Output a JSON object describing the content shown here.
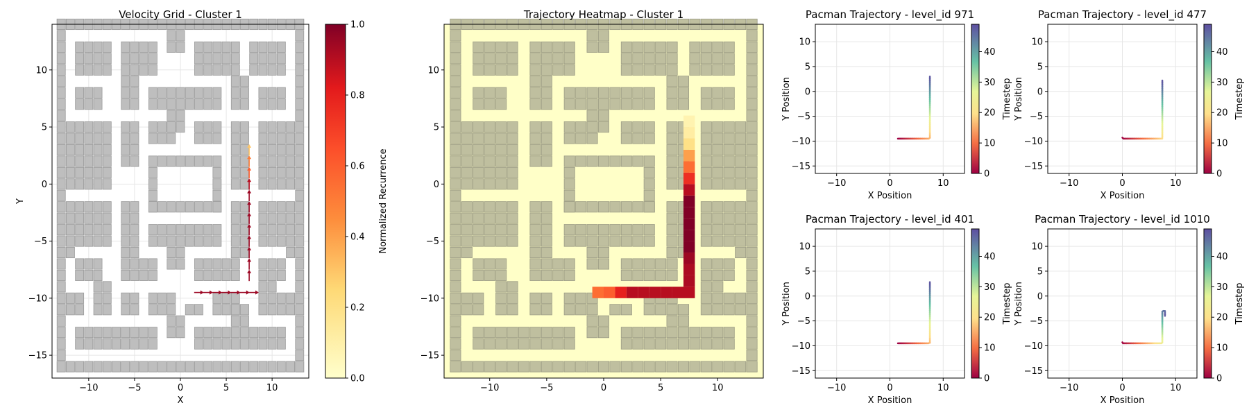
{
  "chart_data": [
    {
      "id": "velocity",
      "type": "quiver",
      "title": "Velocity Grid - Cluster 1",
      "xlabel": "X",
      "ylabel": "Y",
      "xlim": [
        -14,
        14
      ],
      "ylim": [
        -17,
        14
      ],
      "xticks": [
        -10,
        -5,
        0,
        5,
        10
      ],
      "yticks": [
        -15,
        -10,
        -5,
        0,
        5,
        10
      ],
      "grid": true,
      "colorbar": {
        "label": "Normalized Recurrence",
        "min": 0,
        "max": 1,
        "ticks": [
          0.0,
          0.2,
          0.4,
          0.6,
          0.8,
          1.0
        ],
        "colormap": "YlOrRd"
      },
      "arrows": [
        {
          "x": 1.5,
          "y": -9.5,
          "dx": 1,
          "dy": 0,
          "v": 0.95
        },
        {
          "x": 2.5,
          "y": -9.5,
          "dx": 1,
          "dy": 0,
          "v": 0.95
        },
        {
          "x": 3.5,
          "y": -9.5,
          "dx": 1,
          "dy": 0,
          "v": 0.95
        },
        {
          "x": 4.5,
          "y": -9.5,
          "dx": 1,
          "dy": 0,
          "v": 0.95
        },
        {
          "x": 5.5,
          "y": -9.5,
          "dx": 1,
          "dy": 0,
          "v": 0.95
        },
        {
          "x": 6.5,
          "y": -9.5,
          "dx": 1,
          "dy": 0,
          "v": 0.95
        },
        {
          "x": 7.5,
          "y": -9.5,
          "dx": 1,
          "dy": 0,
          "v": 0.95
        },
        {
          "x": 7.5,
          "y": -8.5,
          "dx": 0,
          "dy": 1,
          "v": 0.95
        },
        {
          "x": 7.5,
          "y": -7.5,
          "dx": 0,
          "dy": 1,
          "v": 0.95
        },
        {
          "x": 7.5,
          "y": -6.5,
          "dx": 0,
          "dy": 1,
          "v": 0.95
        },
        {
          "x": 7.5,
          "y": -5.5,
          "dx": 0,
          "dy": 1,
          "v": 0.95
        },
        {
          "x": 7.5,
          "y": -4.5,
          "dx": 0,
          "dy": 1,
          "v": 0.95
        },
        {
          "x": 7.5,
          "y": -3.5,
          "dx": 0,
          "dy": 1,
          "v": 0.95
        },
        {
          "x": 7.5,
          "y": -2.5,
          "dx": 0,
          "dy": 1,
          "v": 0.95
        },
        {
          "x": 7.5,
          "y": -1.5,
          "dx": 0,
          "dy": 1,
          "v": 0.95
        },
        {
          "x": 7.5,
          "y": -0.5,
          "dx": 0,
          "dy": 1,
          "v": 0.9
        },
        {
          "x": 7.5,
          "y": 0.5,
          "dx": 0,
          "dy": 1,
          "v": 0.6
        },
        {
          "x": 7.5,
          "y": 1.5,
          "dx": 0,
          "dy": 1,
          "v": 0.5
        },
        {
          "x": 7.5,
          "y": 2.5,
          "dx": 0,
          "dy": 1,
          "v": 0.3
        }
      ]
    },
    {
      "id": "heatmap",
      "type": "heatmap",
      "title": "Trajectory Heatmap - Cluster 1",
      "xlim": [
        -14,
        14
      ],
      "ylim": [
        -17,
        14
      ],
      "xticks": [
        -10,
        -5,
        0,
        5,
        10
      ],
      "yticks": [
        -15,
        -10,
        -5,
        0,
        5,
        10
      ],
      "colormap": "YlOrRd",
      "cells": [
        {
          "x": -0.5,
          "y": -9.5,
          "v": 0.55
        },
        {
          "x": 0.5,
          "y": -9.5,
          "v": 0.6
        },
        {
          "x": 1.5,
          "y": -9.5,
          "v": 0.8
        },
        {
          "x": 2.5,
          "y": -9.5,
          "v": 0.9
        },
        {
          "x": 3.5,
          "y": -9.5,
          "v": 0.9
        },
        {
          "x": 4.5,
          "y": -9.5,
          "v": 0.9
        },
        {
          "x": 5.5,
          "y": -9.5,
          "v": 0.9
        },
        {
          "x": 6.5,
          "y": -9.5,
          "v": 0.9
        },
        {
          "x": 7.5,
          "y": -9.5,
          "v": 0.9
        },
        {
          "x": 7.5,
          "y": -8.5,
          "v": 0.92
        },
        {
          "x": 7.5,
          "y": -7.5,
          "v": 0.92
        },
        {
          "x": 7.5,
          "y": -6.5,
          "v": 0.95
        },
        {
          "x": 7.5,
          "y": -5.5,
          "v": 1.0
        },
        {
          "x": 7.5,
          "y": -4.5,
          "v": 1.0
        },
        {
          "x": 7.5,
          "y": -3.5,
          "v": 1.0
        },
        {
          "x": 7.5,
          "y": -2.5,
          "v": 1.0
        },
        {
          "x": 7.5,
          "y": -1.5,
          "v": 1.0
        },
        {
          "x": 7.5,
          "y": -0.5,
          "v": 0.9
        },
        {
          "x": 7.5,
          "y": 0.5,
          "v": 0.75
        },
        {
          "x": 7.5,
          "y": 1.5,
          "v": 0.55
        },
        {
          "x": 7.5,
          "y": 2.5,
          "v": 0.4
        },
        {
          "x": 7.5,
          "y": 3.5,
          "v": 0.2
        },
        {
          "x": 7.5,
          "y": 4.5,
          "v": 0.12
        },
        {
          "x": 7.5,
          "y": 5.5,
          "v": 0.08
        }
      ]
    },
    {
      "id": "traj971",
      "type": "line",
      "title": "Pacman Trajectory - level_id 971",
      "xlabel": "X Position",
      "ylabel": "Y Position",
      "xlim": [
        -14,
        14
      ],
      "ylim": [
        -16.5,
        13.5
      ],
      "xticks": [
        -10,
        0,
        10
      ],
      "yticks": [
        -15,
        -10,
        -5,
        0,
        5,
        10
      ],
      "grid": true,
      "colorbar": {
        "label": "Timestep",
        "min": 0,
        "max": 49,
        "ticks": [
          0,
          10,
          20,
          30,
          40
        ],
        "colormap": "Spectral"
      },
      "points": [
        [
          1.5,
          -9.5
        ],
        [
          7.5,
          -9.5
        ],
        [
          7.5,
          -5
        ],
        [
          7.5,
          -1
        ],
        [
          7.5,
          3
        ]
      ]
    },
    {
      "id": "traj477",
      "type": "line",
      "title": "Pacman Trajectory - level_id 477",
      "xlabel": "X Position",
      "ylabel": "Y Position",
      "xlim": [
        -14,
        14
      ],
      "ylim": [
        -16.5,
        13.5
      ],
      "xticks": [
        -10,
        0,
        10
      ],
      "yticks": [
        -15,
        -10,
        -5,
        0,
        5,
        10
      ],
      "grid": true,
      "colorbar": {
        "label": "Timestep",
        "min": 0,
        "max": 49,
        "ticks": [
          0,
          10,
          20,
          30,
          40
        ],
        "colormap": "Spectral"
      },
      "points": [
        [
          0,
          -9.3
        ],
        [
          0,
          -9.5
        ],
        [
          7.5,
          -9.5
        ],
        [
          7.5,
          -5
        ],
        [
          7.5,
          -1
        ],
        [
          7.5,
          2.2
        ]
      ]
    },
    {
      "id": "traj401",
      "type": "line",
      "title": "Pacman Trajectory - level_id 401",
      "xlabel": "X Position",
      "ylabel": "Y Position",
      "xlim": [
        -14,
        14
      ],
      "ylim": [
        -16.5,
        13.5
      ],
      "xticks": [
        -10,
        0,
        10
      ],
      "yticks": [
        -15,
        -10,
        -5,
        0,
        5,
        10
      ],
      "grid": true,
      "colorbar": {
        "label": "Timestep",
        "min": 0,
        "max": 49,
        "ticks": [
          0,
          10,
          20,
          30,
          40
        ],
        "colormap": "Spectral"
      },
      "points": [
        [
          1.5,
          -9.5
        ],
        [
          7.5,
          -9.5
        ],
        [
          7.5,
          -5
        ],
        [
          7.5,
          -1
        ],
        [
          7.5,
          2.8
        ]
      ]
    },
    {
      "id": "traj1010",
      "type": "line",
      "title": "Pacman Trajectory - level_id 1010",
      "xlabel": "X Position",
      "ylabel": "Y Position",
      "xlim": [
        -14,
        14
      ],
      "ylim": [
        -16.5,
        13.5
      ],
      "xticks": [
        -10,
        0,
        10
      ],
      "yticks": [
        -15,
        -10,
        -5,
        0,
        5,
        10
      ],
      "grid": true,
      "colorbar": {
        "label": "Timestep",
        "min": 0,
        "max": 49,
        "ticks": [
          0,
          10,
          20,
          30,
          40
        ],
        "colormap": "Spectral"
      },
      "points": [
        [
          0,
          -9.3
        ],
        [
          0,
          -9.5
        ],
        [
          7.5,
          -9.5
        ],
        [
          7.5,
          -6
        ],
        [
          7.5,
          -3
        ],
        [
          8,
          -3
        ],
        [
          8,
          -4
        ]
      ]
    }
  ],
  "maze_walls": [
    [
      -13.5,
      13.5,
      27,
      1
    ],
    [
      -13.5,
      -16.5,
      27,
      1
    ],
    [
      -13.5,
      -16.5,
      1,
      31
    ],
    [
      12.5,
      -16.5,
      1,
      31
    ],
    [
      -1.5,
      11.5,
      2,
      2
    ],
    [
      -11.5,
      9.5,
      4,
      3
    ],
    [
      -6.5,
      9.5,
      4,
      3
    ],
    [
      1.5,
      9.5,
      5,
      3
    ],
    [
      7.5,
      9.5,
      4,
      3
    ],
    [
      -11.5,
      6.5,
      3,
      2
    ],
    [
      -6.5,
      6.5,
      2,
      3
    ],
    [
      -3.5,
      6.5,
      8,
      2
    ],
    [
      5.5,
      6.5,
      2,
      3
    ],
    [
      8.5,
      6.5,
      3,
      2
    ],
    [
      -1.5,
      4.5,
      2,
      2
    ],
    [
      -12.5,
      -0.5,
      5,
      6
    ],
    [
      -6.5,
      1.5,
      2,
      4
    ],
    [
      -3.5,
      3.5,
      3,
      2
    ],
    [
      1.5,
      3.5,
      3,
      2
    ],
    [
      5.5,
      -0.5,
      2,
      6
    ],
    [
      8.5,
      -0.5,
      4,
      6
    ],
    [
      -3.5,
      1.5,
      8,
      1
    ],
    [
      -3.5,
      -2.5,
      1,
      4
    ],
    [
      3.5,
      -2.5,
      1,
      4
    ],
    [
      -3.5,
      -2.5,
      8,
      1
    ],
    [
      -12.5,
      -5.5,
      5,
      4
    ],
    [
      -6.5,
      -6.5,
      2,
      5
    ],
    [
      -3.5,
      -5.5,
      8,
      2
    ],
    [
      5.5,
      -6.5,
      2,
      5
    ],
    [
      8.5,
      -5.5,
      4,
      4
    ],
    [
      -12.5,
      -6.5,
      1,
      1
    ],
    [
      11.5,
      -6.5,
      1,
      1
    ],
    [
      -11.5,
      -8.5,
      3,
      2
    ],
    [
      -6.5,
      -8.5,
      4,
      2
    ],
    [
      -1.5,
      -7.5,
      2,
      2
    ],
    [
      1.5,
      -8.5,
      5,
      2
    ],
    [
      8.5,
      -8.5,
      3,
      2
    ],
    [
      -12.5,
      -11.5,
      2,
      2
    ],
    [
      -9.5,
      -11.5,
      2,
      3
    ],
    [
      -6.5,
      -11.5,
      2,
      2
    ],
    [
      -3.5,
      -11.5,
      3,
      2
    ],
    [
      0.5,
      -11.5,
      2,
      1
    ],
    [
      3.5,
      -11.5,
      3,
      2
    ],
    [
      5.5,
      -12.5,
      2,
      2
    ],
    [
      8.5,
      -11.5,
      2,
      3
    ],
    [
      10.5,
      -11.5,
      2,
      2
    ],
    [
      -11.5,
      -14.5,
      9,
      2
    ],
    [
      -1.5,
      -13.5,
      2,
      2
    ],
    [
      1.5,
      -14.5,
      10,
      2
    ]
  ]
}
